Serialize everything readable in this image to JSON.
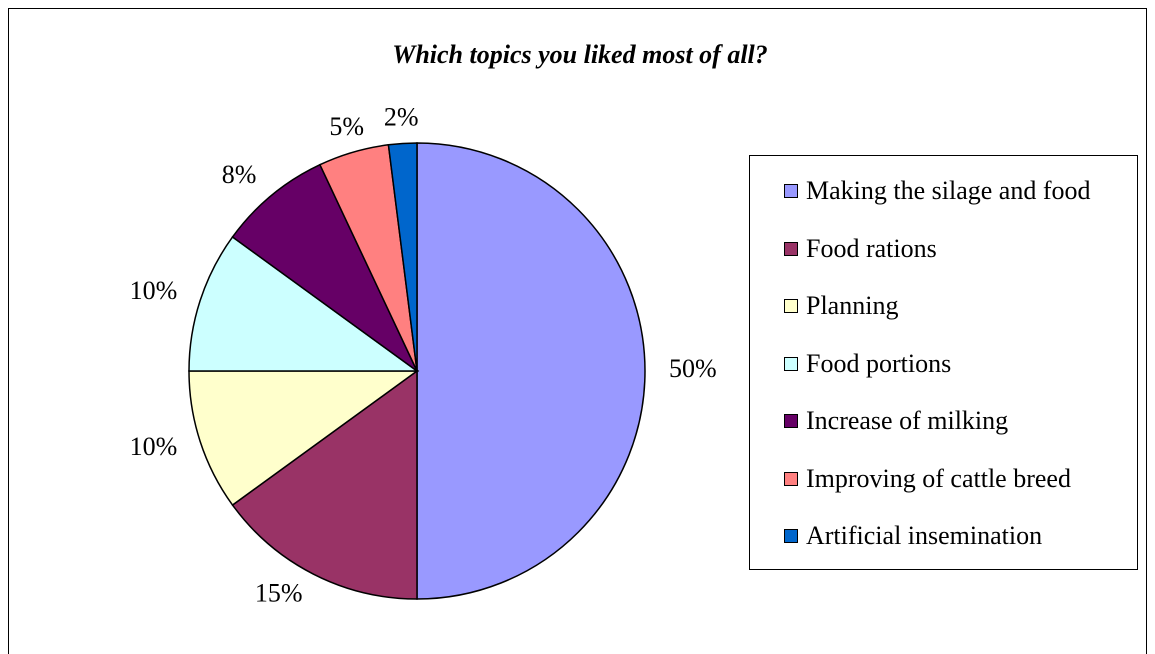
{
  "chart_data": {
    "type": "pie",
    "title": "Which topics you liked most of all?",
    "categories": [
      "Making the silage and food",
      "Food rations",
      "Planning",
      "Food portions",
      "Increase of milking",
      "Improving of cattle breed",
      "Artificial insemination"
    ],
    "values": [
      50,
      15,
      10,
      10,
      8,
      5,
      2
    ],
    "value_labels": [
      "50%",
      "15%",
      "10%",
      "10%",
      "8%",
      "5%",
      "2%"
    ],
    "colors": [
      "#9999ff",
      "#993366",
      "#ffffcc",
      "#ccffff",
      "#660066",
      "#ff8080",
      "#0066cc"
    ],
    "legend": "right"
  }
}
